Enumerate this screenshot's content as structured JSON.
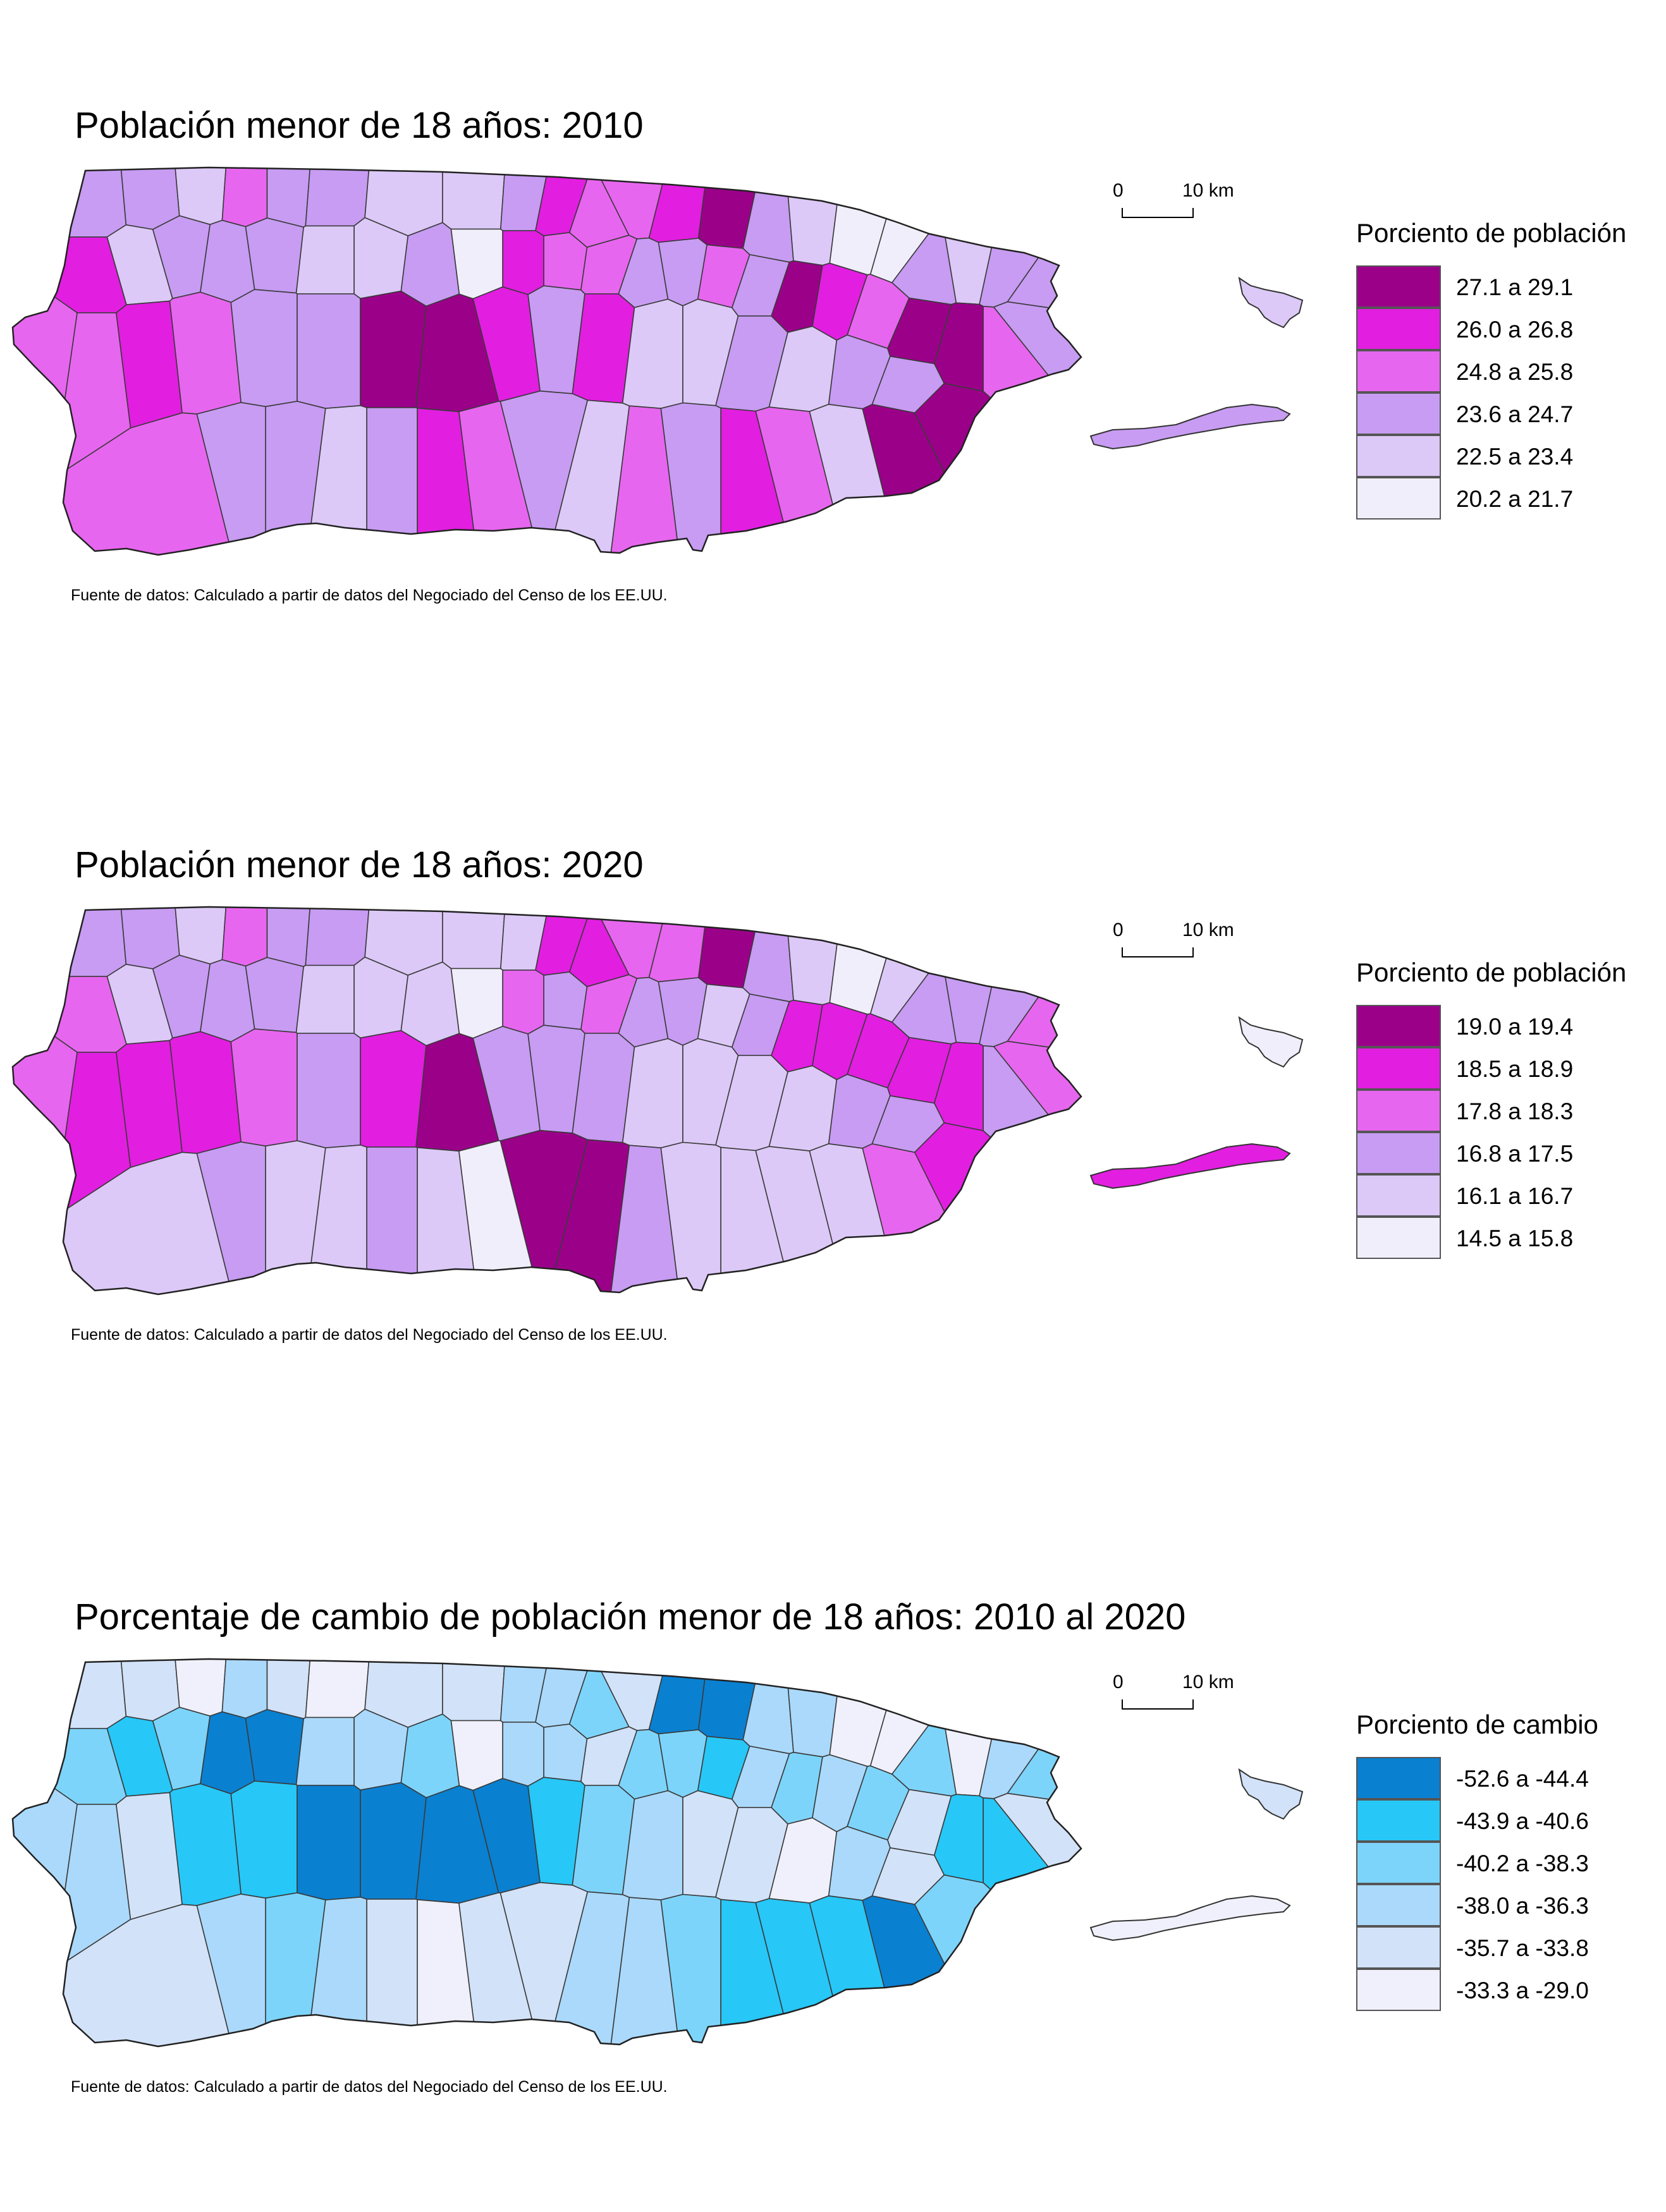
{
  "maps": [
    {
      "title": "Población menor de 18 años: 2010",
      "legend": {
        "title": "Porciento de población",
        "classes": [
          {
            "label": "27.1 a 29.1",
            "color": "#9b0089"
          },
          {
            "label": "26.0 a 26.8",
            "color": "#e21ee0"
          },
          {
            "label": "24.8 a 25.8",
            "color": "#e766ef"
          },
          {
            "label": "23.6 a 24.7",
            "color": "#c79cf2"
          },
          {
            "label": "22.5 a 23.4",
            "color": "#dcc9f7"
          },
          {
            "label": "20.2 a 21.7",
            "color": "#f1eefb"
          }
        ]
      },
      "scale": {
        "zero": "0",
        "ten": "10 km"
      },
      "source": "Fuente de datos: Calculado a partir de datos del Negociado del Censo de los EE.UU.",
      "vieques_class": 3,
      "culebra_class": 4,
      "municipio_classes": [
        3,
        3,
        4,
        2,
        3,
        3,
        4,
        4,
        3,
        1,
        2,
        2,
        1,
        0,
        3,
        4,
        5,
        5,
        3,
        4,
        3,
        3,
        3,
        2,
        0,
        0,
        2,
        1,
        0,
        3,
        2,
        3,
        3,
        2,
        2,
        1,
        5,
        3,
        4,
        4,
        3,
        3,
        3,
        4,
        1,
        2,
        2,
        1,
        2,
        3,
        3,
        0,
        0,
        1,
        3,
        1,
        4,
        4,
        3,
        4,
        3,
        3,
        0,
        0,
        4,
        2,
        1,
        3,
        2,
        4,
        3,
        2,
        1,
        3,
        4,
        3,
        3,
        2
      ]
    },
    {
      "title": "Población menor de 18 años: 2020",
      "legend": {
        "title": "Porciento de población",
        "classes": [
          {
            "label": "19.0 a 19.4",
            "color": "#9b0089"
          },
          {
            "label": "18.5 a 18.9",
            "color": "#e21ee0"
          },
          {
            "label": "17.8 a 18.3",
            "color": "#e766ef"
          },
          {
            "label": "16.8 a 17.5",
            "color": "#c79cf2"
          },
          {
            "label": "16.1 a 16.7",
            "color": "#dcc9f7"
          },
          {
            "label": "14.5 a 15.8",
            "color": "#f1eefb"
          }
        ]
      },
      "scale": {
        "zero": "0",
        "ten": "10 km"
      },
      "source": "Fuente de datos: Calculado a partir de datos del Negociado del Censo de los EE.UU.",
      "vieques_class": 1,
      "culebra_class": 5,
      "municipio_classes": [
        3,
        3,
        4,
        2,
        3,
        3,
        4,
        4,
        4,
        1,
        1,
        2,
        2,
        0,
        3,
        4,
        5,
        4,
        3,
        3,
        3,
        2,
        2,
        3,
        1,
        1,
        1,
        1,
        1,
        3,
        4,
        3,
        3,
        2,
        3,
        2,
        5,
        4,
        4,
        4,
        3,
        3,
        3,
        4,
        2,
        2,
        1,
        1,
        1,
        2,
        3,
        1,
        0,
        3,
        3,
        3,
        4,
        4,
        4,
        4,
        3,
        3,
        1,
        2,
        4,
        4,
        4,
        4,
        3,
        0,
        0,
        5,
        4,
        3,
        4,
        4,
        3,
        4
      ]
    },
    {
      "title": "Porcentaje de cambio de población menor de 18 años: 2010 al 2020",
      "legend": {
        "title": "Porciento de cambio",
        "classes": [
          {
            "label": "-52.6 a -44.4",
            "color": "#0a80d0"
          },
          {
            "label": "-43.9 a -40.6",
            "color": "#27c7f7"
          },
          {
            "label": "-40.2 a -38.3",
            "color": "#7dd4fa"
          },
          {
            "label": "-38.0 a -36.3",
            "color": "#aad9fb"
          },
          {
            "label": "-35.7 a -33.8",
            "color": "#d2e2f8"
          },
          {
            "label": "-33.3 a -29.0",
            "color": "#eff0fb"
          }
        ]
      },
      "scale": {
        "zero": "0",
        "ten": "10 km"
      },
      "source": "Fuente de datos: Calculado a partir de datos del Negociado del Censo de los EE.UU.",
      "vieques_class": 5,
      "culebra_class": 4,
      "municipio_classes": [
        4,
        4,
        5,
        3,
        4,
        5,
        4,
        4,
        3,
        3,
        2,
        4,
        0,
        0,
        3,
        3,
        5,
        5,
        2,
        5,
        3,
        2,
        4,
        1,
        1,
        4,
        2,
        3,
        2,
        3,
        1,
        2,
        2,
        4,
        3,
        3,
        5,
        2,
        3,
        3,
        0,
        0,
        2,
        1,
        2,
        3,
        3,
        4,
        1,
        1,
        0,
        0,
        0,
        0,
        1,
        2,
        3,
        4,
        4,
        5,
        3,
        4,
        2,
        0,
        1,
        1,
        1,
        2,
        3,
        3,
        4,
        4,
        5,
        4,
        3,
        2,
        3,
        4
      ]
    }
  ]
}
